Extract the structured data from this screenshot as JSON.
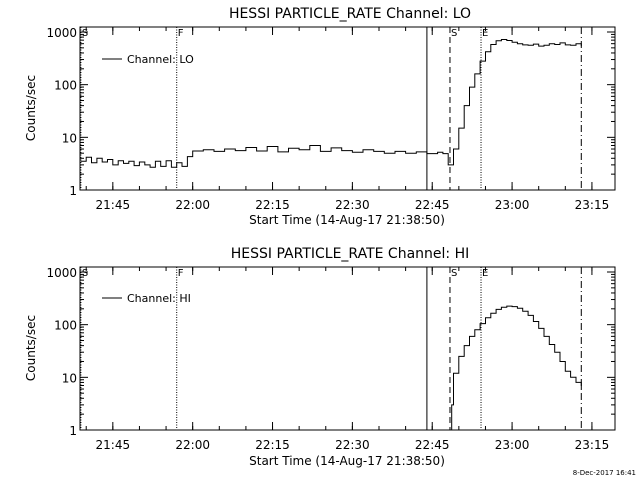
{
  "footer": {
    "stamp": "8-Dec-2017 16:41"
  },
  "chart_data": [
    {
      "type": "line",
      "title": "HESSI PARTICLE_RATE Channel: LO",
      "xlabel": "Start Time (14-Aug-17 21:38:50)",
      "ylabel": "Counts/sec",
      "yscale": "log",
      "ylim": [
        1,
        1000
      ],
      "ytick_labels": [
        "1",
        "10",
        "100",
        "1000"
      ],
      "xlim": [
        "21:38:50",
        "23:19:20"
      ],
      "xtick_labels": [
        "21:45",
        "22:00",
        "22:15",
        "22:30",
        "22:45",
        "23:00",
        "23:15"
      ],
      "grid": false,
      "legend_position": "top-left",
      "series": [
        {
          "name": "Channel: LO",
          "x": [
            "21:39",
            "21:40",
            "21:41",
            "21:42",
            "21:43",
            "21:44",
            "21:45",
            "21:46",
            "21:47",
            "21:48",
            "21:49",
            "21:50",
            "21:51",
            "21:52",
            "21:53",
            "21:54",
            "21:55",
            "21:56",
            "21:57",
            "21:58",
            "21:59",
            "22:00",
            "22:02",
            "22:04",
            "22:06",
            "22:08",
            "22:10",
            "22:12",
            "22:14",
            "22:16",
            "22:18",
            "22:20",
            "22:22",
            "22:24",
            "22:26",
            "22:28",
            "22:30",
            "22:32",
            "22:34",
            "22:36",
            "22:38",
            "22:40",
            "22:42",
            "22:44",
            "22:46",
            "22:47",
            "22:48",
            "22:49",
            "22:50",
            "22:51",
            "22:52",
            "22:53",
            "22:54",
            "22:55",
            "22:56",
            "22:57",
            "22:58",
            "22:59",
            "23:00",
            "23:01",
            "23:02",
            "23:03",
            "23:04",
            "23:05",
            "23:06",
            "23:07",
            "23:08",
            "23:09",
            "23:10",
            "23:11",
            "23:12",
            "23:13"
          ],
          "y": [
            3.5,
            4.2,
            3.3,
            4.0,
            3.4,
            3.8,
            3.0,
            3.6,
            3.2,
            3.5,
            2.9,
            3.4,
            3.0,
            2.7,
            3.5,
            2.8,
            3.6,
            2.7,
            3.3,
            2.8,
            4.3,
            5.5,
            5.8,
            5.4,
            6.0,
            5.6,
            6.4,
            5.5,
            6.7,
            5.3,
            6.2,
            5.8,
            7.0,
            5.4,
            6.3,
            5.6,
            5.2,
            5.8,
            5.4,
            5.0,
            5.4,
            5.0,
            5.3,
            4.9,
            5.2,
            4.9,
            3.0,
            6.0,
            15,
            40,
            90,
            160,
            280,
            420,
            580,
            680,
            720,
            690,
            640,
            600,
            570,
            560,
            590,
            540,
            560,
            600,
            580,
            620,
            570,
            560,
            600,
            540
          ]
        }
      ],
      "markers": [
        {
          "label": "S",
          "time": "21:39:00",
          "style": "dotted"
        },
        {
          "label": "F",
          "time": "21:57:00",
          "style": "dotted"
        },
        {
          "label": "",
          "time": "22:44:00",
          "style": "solid"
        },
        {
          "label": "S",
          "time": "22:48:20",
          "style": "dashed"
        },
        {
          "label": "E",
          "time": "22:54:10",
          "style": "dotted"
        },
        {
          "label": "",
          "time": "23:13:00",
          "style": "dashdot"
        }
      ]
    },
    {
      "type": "line",
      "title": "HESSI PARTICLE_RATE Channel: HI",
      "xlabel": "Start Time (14-Aug-17 21:38:50)",
      "ylabel": "Counts/sec",
      "yscale": "log",
      "ylim": [
        1,
        1000
      ],
      "ytick_labels": [
        "1",
        "10",
        "100",
        "1000"
      ],
      "xlim": [
        "21:38:50",
        "23:19:20"
      ],
      "xtick_labels": [
        "21:45",
        "22:00",
        "22:15",
        "22:30",
        "22:45",
        "23:00",
        "23:15"
      ],
      "grid": false,
      "legend_position": "top-left",
      "series": [
        {
          "name": "Channel: HI",
          "x": [
            "22:48:20",
            "22:48:40",
            "22:49",
            "22:50",
            "22:51",
            "22:52",
            "22:53",
            "22:54",
            "22:55",
            "22:56",
            "22:57",
            "22:58",
            "22:59",
            "23:00",
            "23:01",
            "23:02",
            "23:03",
            "23:04",
            "23:05",
            "23:06",
            "23:07",
            "23:08",
            "23:09",
            "23:10",
            "23:11",
            "23:12",
            "23:13"
          ],
          "y": [
            1.0,
            3.0,
            12,
            25,
            40,
            60,
            80,
            105,
            135,
            165,
            195,
            215,
            225,
            220,
            205,
            180,
            150,
            115,
            85,
            60,
            42,
            30,
            20,
            13,
            10,
            8,
            6
          ]
        }
      ],
      "markers": [
        {
          "label": "S",
          "time": "21:39:00",
          "style": "dotted"
        },
        {
          "label": "F",
          "time": "21:57:00",
          "style": "dotted"
        },
        {
          "label": "",
          "time": "22:44:00",
          "style": "solid"
        },
        {
          "label": "S",
          "time": "22:48:20",
          "style": "dashed"
        },
        {
          "label": "E",
          "time": "22:54:10",
          "style": "dotted"
        },
        {
          "label": "",
          "time": "23:13:00",
          "style": "dashdot"
        }
      ]
    }
  ]
}
